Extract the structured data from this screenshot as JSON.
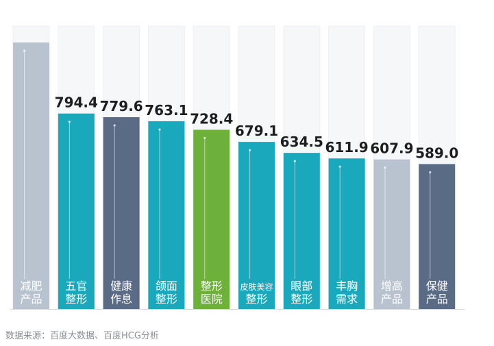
{
  "chart_data": {
    "type": "bar",
    "categories": [
      [
        "减肥",
        "产品"
      ],
      [
        "五官",
        "整形"
      ],
      [
        "健康",
        "作息"
      ],
      [
        "颌面",
        "整形"
      ],
      [
        "整形",
        "医院"
      ],
      [
        "皮肤美容",
        "整形"
      ],
      [
        "眼部",
        "整形"
      ],
      [
        "丰胸",
        "需求"
      ],
      [
        "增高",
        "产品"
      ],
      [
        "保健",
        "产品"
      ]
    ],
    "values": [
      null,
      794.4,
      779.6,
      763.1,
      728.4,
      679.1,
      634.5,
      611.9,
      607.9,
      589.0
    ],
    "value_labels": [
      "",
      "794.4",
      "779.6",
      "763.1",
      "728.4",
      "679.1",
      "634.5",
      "611.9",
      "607.9",
      "589.0"
    ],
    "bar_colors": [
      "#b9c3cf",
      "#1aa9bc",
      "#5a6b86",
      "#1aa9bc",
      "#6db03a",
      "#1aa9bc",
      "#1aa9bc",
      "#1aa9bc",
      "#b9c3cf",
      "#5a6b86"
    ],
    "ylim": [
      0,
      1150
    ],
    "title": "",
    "xlabel": "",
    "ylabel": ""
  },
  "footer": {
    "source": "数据来源：百度大数据、百度HCG分析"
  }
}
